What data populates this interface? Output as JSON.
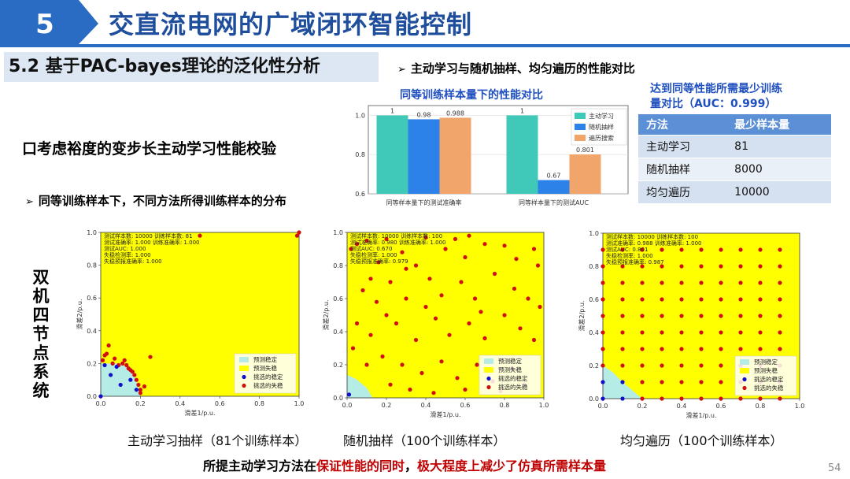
{
  "header": {
    "chapter_number": "5",
    "title": "交直流电网的广域闭环智能控制",
    "accent_color": "#2a6cc4",
    "title_color": "#1f4e9c"
  },
  "section": {
    "title": "5.2 基于PAC-bayes理论的泛化性分析"
  },
  "comparison_heading": "主动学习与随机抽样、均匀遍历的性能对比",
  "bar_chart_caption": "同等训练样本量下的性能对比",
  "left_heading": "口考虑裕度的变步长主动学习性能校验",
  "dist_heading": "同等训练样本下，不同方法所得训练样本的分布",
  "table_block": {
    "caption_line1": "达到同等性能所需最少训练",
    "caption_line2": "量对比（AUC：0.999）",
    "headers": [
      "方法",
      "最少样本量"
    ],
    "rows": [
      [
        "主动学习",
        "81"
      ],
      [
        "随机抽样",
        "8000"
      ],
      [
        "均匀遍历",
        "10000"
      ]
    ]
  },
  "side_title": "双机四节点系统",
  "captions": {
    "active": "主动学习抽样（81个训练样本）",
    "random": "随机抽样（100个训练样本）",
    "uniform": "均匀遍历（100个训练样本）"
  },
  "conclusion": {
    "part1": "所提主动学习方法在",
    "part2": "保证性能的同时",
    "part3": "，",
    "part4": "极大程度上减少了仿真所需样本量"
  },
  "page_number": "54",
  "chart_data": [
    {
      "type": "bar",
      "categories": [
        "同等样本量下的测试准确率",
        "同等样本量下的测试AUC"
      ],
      "series": [
        {
          "name": "主动学习",
          "values": [
            1,
            1
          ],
          "labels": [
            "1",
            "1"
          ],
          "color": "#40c8b8"
        },
        {
          "name": "随机抽样",
          "values": [
            0.98,
            0.67
          ],
          "labels": [
            "0.98",
            "0.67"
          ],
          "color": "#2c82e8"
        },
        {
          "name": "遍历搜索",
          "values": [
            0.988,
            0.801
          ],
          "labels": [
            "0.988",
            "0.801"
          ],
          "color": "#f2a56a"
        }
      ],
      "ylim": [
        0.6,
        1.05
      ],
      "yticks": [
        "0.6",
        "0.8",
        "1.0"
      ]
    },
    {
      "type": "scatter",
      "xlabel": "滑差1/p.u.",
      "ylabel": "滑差2/p.u.",
      "xlim": [
        0,
        1
      ],
      "ylim": [
        0,
        1
      ],
      "xticks": [
        "0.0",
        "0.2",
        "0.4",
        "0.6",
        "0.8",
        "1.0"
      ],
      "yticks": [
        "0.0",
        "0.2",
        "0.4",
        "0.6",
        "0.8",
        "1.0"
      ],
      "info": [
        "测试样本数: 10000 训练样本数: 81",
        "测试准确率: 1.000 训练准确率: 1.000",
        "测试AUC: 1.000",
        "失稳检测率: 1.000",
        "失稳预报准确率: 1.000"
      ],
      "legend": [
        "预测稳定",
        "预测失稳",
        "挑选的稳定",
        "挑选的失稳"
      ],
      "stable_boundary": [
        [
          0,
          0.2
        ],
        [
          0.1,
          0.2
        ],
        [
          0.14,
          0.17
        ],
        [
          0.17,
          0.12
        ],
        [
          0.19,
          0.06
        ],
        [
          0.2,
          0
        ]
      ],
      "stable_points": [
        [
          0,
          0
        ],
        [
          0.05,
          0.13
        ],
        [
          0.1,
          0.07
        ],
        [
          0.15,
          0.1
        ],
        [
          0.18,
          0.04
        ],
        [
          0.02,
          0.19
        ],
        [
          0.08,
          0.18
        ]
      ],
      "unstable_points": [
        [
          0.01,
          0.22
        ],
        [
          0.03,
          0.26
        ],
        [
          0.04,
          0.31
        ],
        [
          0.06,
          0.2
        ],
        [
          0.09,
          0.19
        ],
        [
          0.11,
          0.2
        ],
        [
          0.13,
          0.19
        ],
        [
          0.14,
          0.17
        ],
        [
          0.15,
          0.16
        ],
        [
          0.16,
          0.15
        ],
        [
          0.17,
          0.13
        ],
        [
          0.18,
          0.1
        ],
        [
          0.19,
          0.07
        ],
        [
          0.2,
          0.04
        ],
        [
          0.2,
          0.02
        ],
        [
          0.22,
          0.06
        ],
        [
          0.25,
          0.24
        ],
        [
          0.5,
          0.98
        ],
        [
          0.99,
          0.98
        ],
        [
          1,
          1
        ],
        [
          0.02,
          0.25
        ],
        [
          0.12,
          0.22
        ],
        [
          0.07,
          0.23
        ]
      ]
    },
    {
      "type": "scatter",
      "xlabel": "滑差1/p.u.",
      "ylabel": "滑差2/p.u.",
      "xlim": [
        0,
        1
      ],
      "ylim": [
        0,
        1
      ],
      "xticks": [
        "0.0",
        "0.2",
        "0.4",
        "0.6",
        "0.8",
        "1.0"
      ],
      "yticks": [
        "0.0",
        "0.2",
        "0.4",
        "0.6",
        "0.8",
        "1.0"
      ],
      "info": [
        "测试样本数: 10000 训练样本数: 100",
        "测试准确率: 0.980 训练准确率: 1.000",
        "测试AUC: 0.670",
        "失稳检测率: 1.000",
        "失稳预报准确率: 0.979"
      ],
      "legend": [
        "预测稳定",
        "预测失稳",
        "挑选的稳定",
        "挑选的失稳"
      ],
      "stable_boundary": [
        [
          0,
          0.14
        ],
        [
          0.05,
          0.11
        ],
        [
          0.1,
          0.06
        ],
        [
          0.13,
          0
        ]
      ],
      "stable_points": [
        [
          0.01,
          0.02
        ]
      ],
      "unstable_points": [
        [
          0.02,
          0.9
        ],
        [
          0.05,
          0.93
        ],
        [
          0.1,
          0.95
        ],
        [
          0.12,
          0.72
        ],
        [
          0.2,
          0.96
        ],
        [
          0.28,
          0.88
        ],
        [
          0.35,
          0.8
        ],
        [
          0.4,
          0.97
        ],
        [
          0.5,
          0.9
        ],
        [
          0.55,
          0.96
        ],
        [
          0.6,
          0.85
        ],
        [
          0.7,
          0.93
        ],
        [
          0.8,
          0.92
        ],
        [
          0.95,
          0.9
        ],
        [
          0.97,
          0.8
        ],
        [
          0.08,
          0.65
        ],
        [
          0.15,
          0.58
        ],
        [
          0.22,
          0.7
        ],
        [
          0.3,
          0.6
        ],
        [
          0.42,
          0.72
        ],
        [
          0.48,
          0.62
        ],
        [
          0.58,
          0.7
        ],
        [
          0.65,
          0.6
        ],
        [
          0.75,
          0.75
        ],
        [
          0.85,
          0.66
        ],
        [
          0.92,
          0.6
        ],
        [
          0.05,
          0.45
        ],
        [
          0.12,
          0.38
        ],
        [
          0.25,
          0.45
        ],
        [
          0.35,
          0.35
        ],
        [
          0.45,
          0.48
        ],
        [
          0.52,
          0.38
        ],
        [
          0.62,
          0.45
        ],
        [
          0.7,
          0.36
        ],
        [
          0.8,
          0.5
        ],
        [
          0.88,
          0.42
        ],
        [
          0.95,
          0.35
        ],
        [
          0.03,
          0.3
        ],
        [
          0.18,
          0.25
        ],
        [
          0.28,
          0.2
        ],
        [
          0.38,
          0.15
        ],
        [
          0.48,
          0.22
        ],
        [
          0.56,
          0.12
        ],
        [
          0.66,
          0.2
        ],
        [
          0.74,
          0.1
        ],
        [
          0.84,
          0.18
        ],
        [
          0.9,
          0.08
        ],
        [
          0.22,
          0.08
        ],
        [
          0.32,
          0.05
        ],
        [
          0.44,
          0.03
        ],
        [
          0.6,
          0.05
        ],
        [
          0.78,
          0.04
        ],
        [
          0.16,
          0.82
        ],
        [
          0.62,
          0.98
        ],
        [
          0.86,
          0.84
        ],
        [
          0.4,
          0.55
        ],
        [
          0.68,
          0.52
        ],
        [
          0.1,
          0.2
        ],
        [
          0.98,
          0.55
        ],
        [
          0.2,
          0.5
        ],
        [
          0.3,
          0.78
        ]
      ]
    },
    {
      "type": "scatter",
      "xlabel": "滑差1/p.u.",
      "ylabel": "滑差2/p.u.",
      "xlim": [
        0,
        1
      ],
      "ylim": [
        0,
        1
      ],
      "xticks": [
        "0.0",
        "0.2",
        "0.4",
        "0.6",
        "0.8",
        "1.0"
      ],
      "yticks": [
        "0.0",
        "0.2",
        "0.4",
        "0.6",
        "0.8",
        "1.0"
      ],
      "info": [
        "测试样本数: 10000 训练样本数: 100",
        "测试准确率: 0.988 训练准确率: 1.000",
        "测试AUC: 0.801",
        "失稳检测率: 1.000",
        "失稳预报准确率: 0.987"
      ],
      "legend": [
        "预测稳定",
        "预测失稳",
        "挑选的稳定",
        "挑选的失稳"
      ],
      "stable_boundary": [
        [
          0,
          0.2
        ],
        [
          0.05,
          0.16
        ],
        [
          0.1,
          0.1
        ],
        [
          0.16,
          0.04
        ],
        [
          0.2,
          0
        ]
      ],
      "grid_step": 0.1,
      "grid_max": 0.9,
      "stable_cells": [
        [
          0,
          0
        ],
        [
          0,
          0.1
        ],
        [
          0.1,
          0
        ],
        [
          0.1,
          0.1
        ]
      ]
    }
  ]
}
